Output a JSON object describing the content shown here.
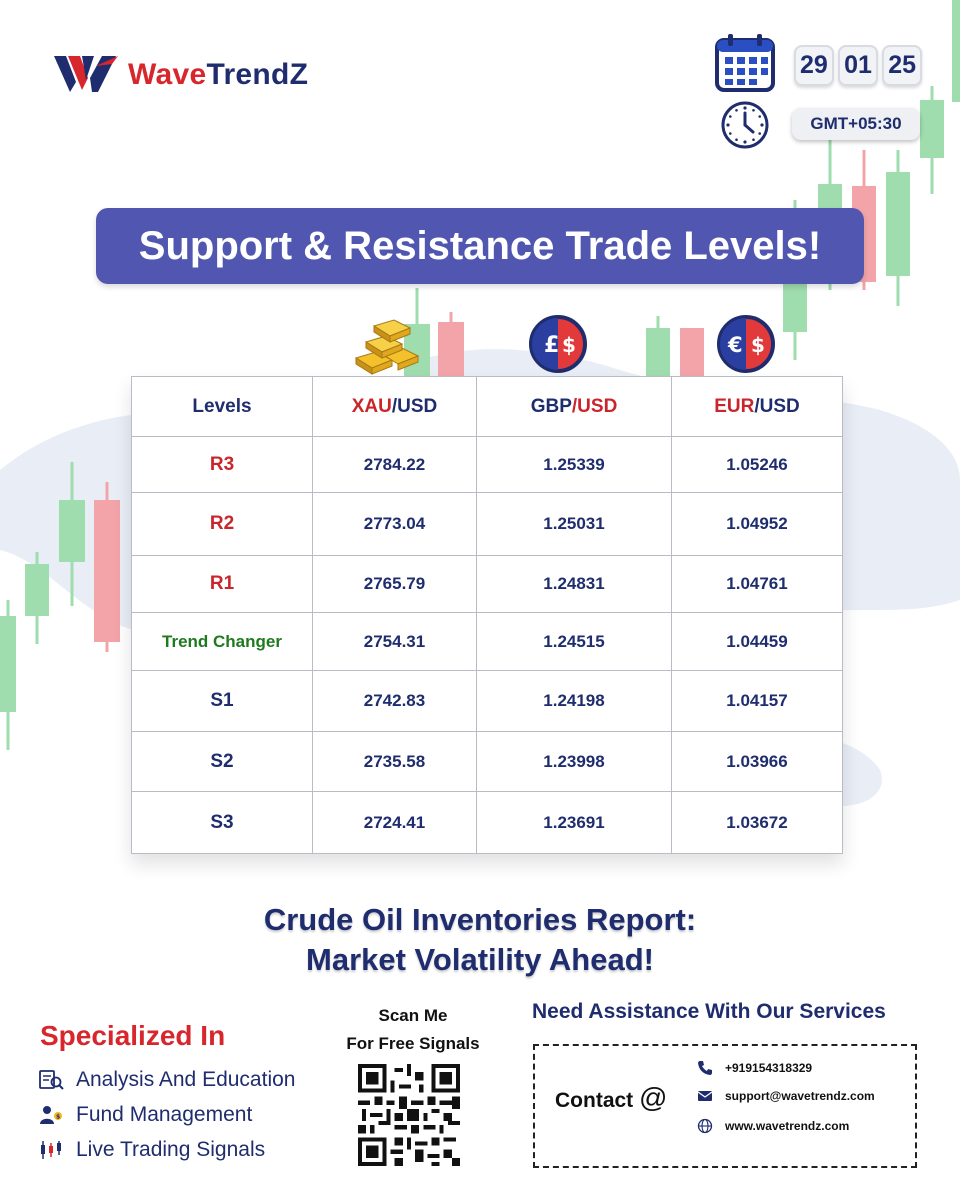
{
  "brand": {
    "name_part1": "Wave",
    "name_part2": "TrendZ"
  },
  "date": {
    "day": "29",
    "month": "01",
    "year": "25"
  },
  "timezone": "GMT+05:30",
  "title": "Support & Resistance Trade Levels!",
  "table": {
    "headers": [
      {
        "parts": [
          "Levels"
        ]
      },
      {
        "parts": [
          "XAU",
          "/USD"
        ]
      },
      {
        "parts": [
          "GBP",
          "/USD"
        ]
      },
      {
        "parts": [
          "EUR",
          "/USD"
        ]
      }
    ],
    "rows": [
      {
        "level": "R3",
        "kind": "resistance",
        "values": [
          "2784.22",
          "1.25339",
          "1.05246"
        ]
      },
      {
        "level": "R2",
        "kind": "resistance",
        "values": [
          "2773.04",
          "1.25031",
          "1.04952"
        ]
      },
      {
        "level": "R1",
        "kind": "resistance",
        "values": [
          "2765.79",
          "1.24831",
          "1.04761"
        ]
      },
      {
        "level": "Trend Changer",
        "kind": "trend",
        "values": [
          "2754.31",
          "1.24515",
          "1.04459"
        ]
      },
      {
        "level": "S1",
        "kind": "support",
        "values": [
          "2742.83",
          "1.24198",
          "1.04157"
        ]
      },
      {
        "level": "S2",
        "kind": "support",
        "values": [
          "2735.58",
          "1.23998",
          "1.03966"
        ]
      },
      {
        "level": "S3",
        "kind": "support",
        "values": [
          "2724.41",
          "1.23691",
          "1.03672"
        ]
      }
    ]
  },
  "headline": {
    "line1": "Crude Oil Inventories Report:",
    "line2": "Market Volatility Ahead!"
  },
  "specialized": {
    "title": "Specialized In",
    "items": [
      {
        "label": "Analysis And Education",
        "icon": "analysis-icon"
      },
      {
        "label": "Fund  Management",
        "icon": "fund-icon"
      },
      {
        "label": "Live Trading Signals",
        "icon": "signals-icon"
      }
    ]
  },
  "scan": {
    "line1": "Scan Me",
    "line2": "For Free Signals"
  },
  "assistance": "Need Assistance With Our Services",
  "contact": {
    "label": "Contact",
    "at": "@",
    "phone": "+919154318329",
    "email": "support@wavetrendz.com",
    "website": "www.wavetrendz.com"
  },
  "colors": {
    "brand_red": "#d8262d",
    "navy": "#1f2d6e",
    "title_bg": "#5157b0",
    "candle_green": "#9fdcae",
    "candle_red": "#f2a4a8"
  }
}
